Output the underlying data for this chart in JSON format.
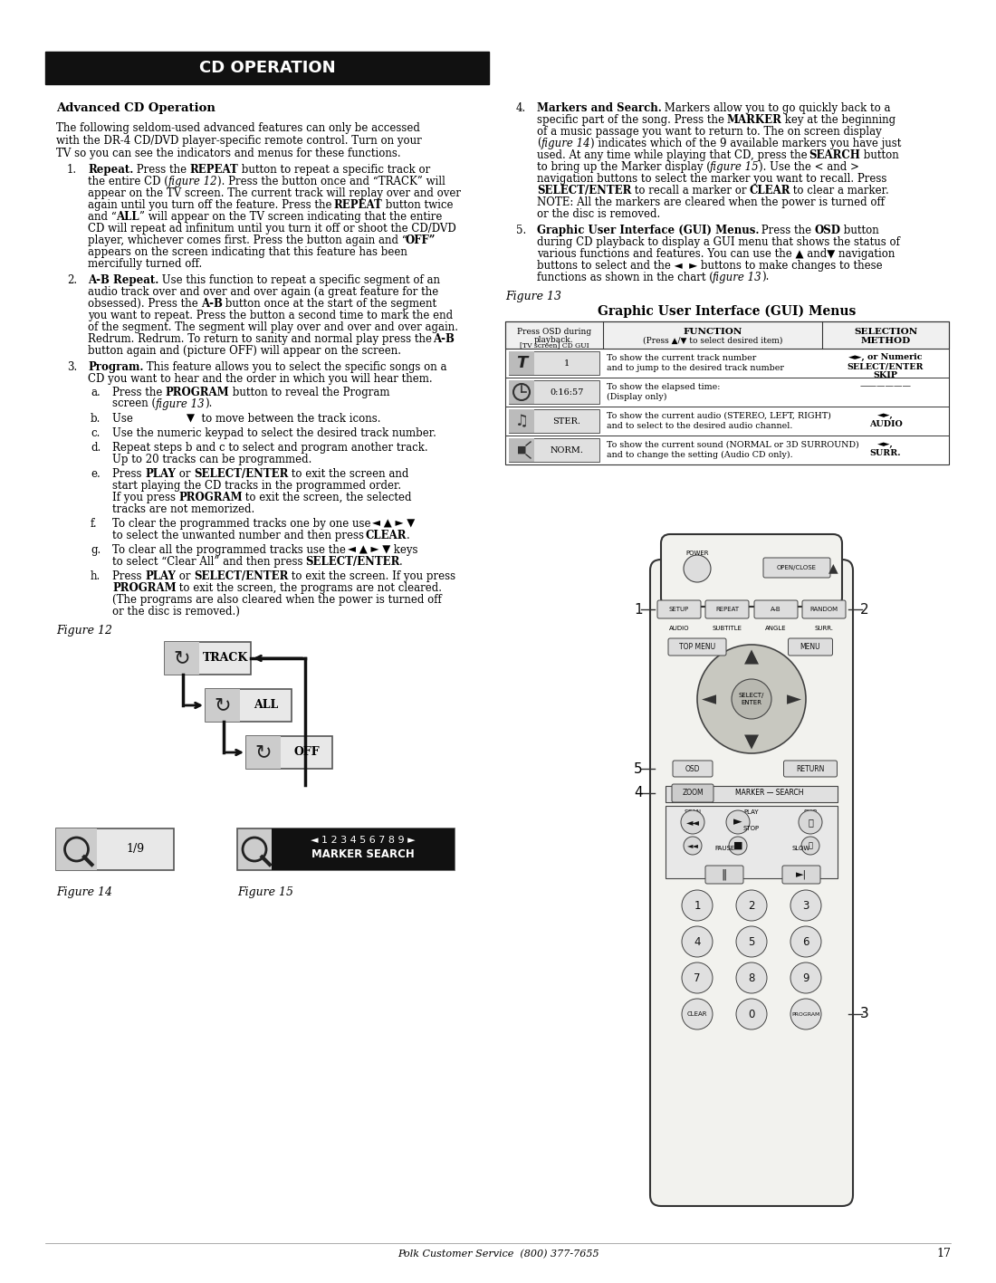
{
  "page_bg": "#ffffff",
  "header_bg": "#111111",
  "header_text": "CD OPERATION",
  "header_text_color": "#ffffff",
  "footer_text": "Polk Customer Service  (800) 377-7655",
  "page_number": "17"
}
